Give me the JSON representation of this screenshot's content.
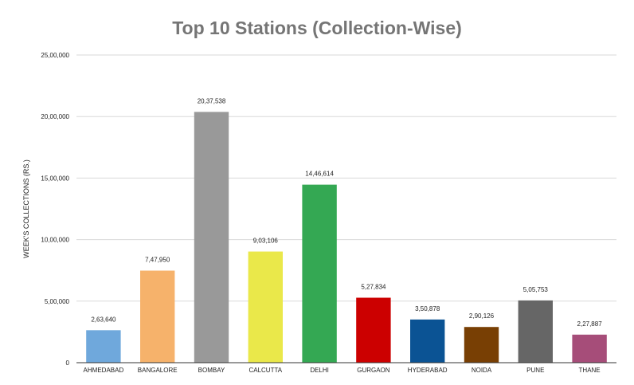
{
  "chart_data": {
    "type": "bar",
    "title": "Top 10 Stations (Collection-Wise)",
    "xlabel": "",
    "ylabel": "WEEK'S COLLECTIONS (RS.)",
    "ylim": [
      0,
      2500000
    ],
    "grid": true,
    "yticks": [
      0,
      500000,
      1000000,
      1500000,
      2000000,
      2500000
    ],
    "ytick_labels": [
      "0",
      "5,00,000",
      "10,00,000",
      "15,00,000",
      "20,00,000",
      "25,00,000"
    ],
    "categories": [
      "AHMEDABAD",
      "BANGALORE",
      "BOMBAY",
      "CALCUTTA",
      "DELHI",
      "GURGAON",
      "HYDERABAD",
      "NOIDA",
      "PUNE",
      "THANE"
    ],
    "values": [
      263640,
      747950,
      2037538,
      903106,
      1446614,
      527834,
      350878,
      290126,
      505753,
      227887
    ],
    "value_labels": [
      "2,63,640",
      "7,47,950",
      "20,37,538",
      "9,03,106",
      "14,46,614",
      "5,27,834",
      "3,50,878",
      "2,90,126",
      "5,05,753",
      "2,27,887"
    ],
    "colors": [
      "#6fa8dc",
      "#f6b26b",
      "#999999",
      "#eae84a",
      "#34a853",
      "#cc0000",
      "#0b5394",
      "#783f04",
      "#666666",
      "#a64d79"
    ]
  }
}
